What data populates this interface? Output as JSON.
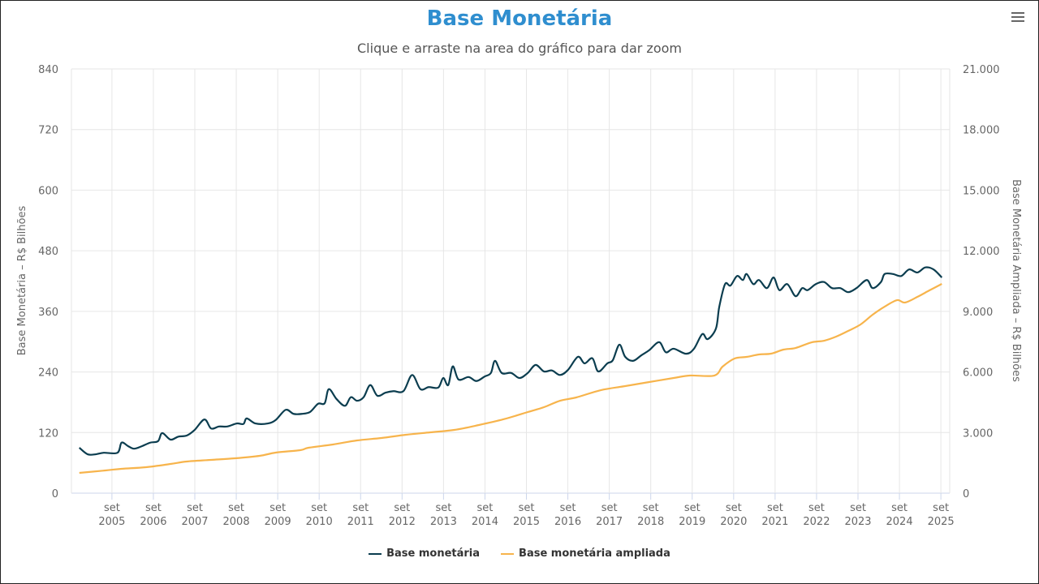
{
  "chart_data": {
    "type": "line",
    "title": "Base Monetária",
    "subtitle": "Clique e arraste na area do gráfico para dar zoom",
    "ylabel_left": "Base Monetária – R$ Bilhões",
    "ylabel_right": "Base Monetária Ampliada – R$ Bilhões",
    "ylim_left": [
      0,
      840
    ],
    "ylim_right": [
      0,
      21000
    ],
    "xlim": [
      2004.69,
      2025.88
    ],
    "yticks_left": [
      "0",
      "120",
      "240",
      "360",
      "480",
      "600",
      "720",
      "840"
    ],
    "yticks_right": [
      "0",
      "3.000",
      "6.000",
      "9.000",
      "12.000",
      "15.000",
      "18.000",
      "21.000"
    ],
    "xtick_month": "set",
    "xtick_years": [
      "2005",
      "2006",
      "2007",
      "2008",
      "2009",
      "2010",
      "2011",
      "2012",
      "2013",
      "2014",
      "2015",
      "2016",
      "2017",
      "2018",
      "2019",
      "2020",
      "2021",
      "2022",
      "2023",
      "2024",
      "2025"
    ],
    "grid": true,
    "legend_position": "bottom-center",
    "series": [
      {
        "name": "Base monetária",
        "axis": "left",
        "color": "#0b3d4f",
        "x": [
          2004.88,
          2005.08,
          2005.28,
          2005.47,
          2005.8,
          2005.9,
          2006.06,
          2006.2,
          2006.39,
          2006.59,
          2006.78,
          2006.88,
          2007.08,
          2007.27,
          2007.47,
          2007.66,
          2007.9,
          2008.06,
          2008.25,
          2008.45,
          2008.68,
          2008.84,
          2008.92,
          2009.13,
          2009.43,
          2009.62,
          2009.86,
          2010.05,
          2010.25,
          2010.45,
          2010.64,
          2010.8,
          2010.9,
          2011.09,
          2011.29,
          2011.43,
          2011.58,
          2011.74,
          2011.9,
          2012.07,
          2012.27,
          2012.46,
          2012.7,
          2012.91,
          2013.11,
          2013.31,
          2013.54,
          2013.66,
          2013.78,
          2013.89,
          2014.03,
          2014.27,
          2014.46,
          2014.66,
          2014.81,
          2014.91,
          2015.07,
          2015.3,
          2015.5,
          2015.7,
          2015.89,
          2016.09,
          2016.28,
          2016.48,
          2016.67,
          2016.91,
          2017.07,
          2017.26,
          2017.4,
          2017.62,
          2017.75,
          2017.91,
          2018.05,
          2018.24,
          2018.44,
          2018.63,
          2018.87,
          2019.03,
          2019.22,
          2019.52,
          2019.71,
          2019.91,
          2020.04,
          2020.24,
          2020.32,
          2020.46,
          2020.59,
          2020.75,
          2020.89,
          2020.98,
          2021.14,
          2021.28,
          2021.47,
          2021.63,
          2021.77,
          2021.96,
          2022.16,
          2022.32,
          2022.45,
          2022.65,
          2022.85,
          2023.04,
          2023.24,
          2023.43,
          2023.63,
          2023.88,
          2024.02,
          2024.22,
          2024.31,
          2024.51,
          2024.71,
          2024.9,
          2025.1,
          2025.29,
          2025.49,
          2025.69
        ],
        "values": [
          90,
          77,
          77,
          80,
          80,
          100,
          93,
          88,
          93,
          100,
          103,
          119,
          106,
          112,
          114,
          125,
          146,
          128,
          132,
          132,
          138,
          137,
          148,
          138,
          138,
          145,
          165,
          157,
          157,
          161,
          177,
          178,
          206,
          186,
          173,
          190,
          183,
          190,
          214,
          193,
          199,
          202,
          202,
          234,
          206,
          210,
          209,
          228,
          214,
          251,
          225,
          230,
          222,
          231,
          238,
          262,
          238,
          238,
          228,
          238,
          254,
          241,
          243,
          234,
          244,
          270,
          257,
          267,
          241,
          257,
          263,
          294,
          270,
          262,
          273,
          283,
          299,
          279,
          286,
          276,
          286,
          315,
          305,
          326,
          369,
          414,
          411,
          430,
          422,
          434,
          414,
          422,
          406,
          427,
          402,
          414,
          390,
          406,
          402,
          414,
          418,
          406,
          406,
          398,
          406,
          422,
          406,
          418,
          434,
          434,
          430,
          443,
          437,
          447,
          443,
          427
        ]
      },
      {
        "name": "Base monetária ampliada",
        "axis": "right",
        "color": "#f7b44c",
        "x": [
          2004.88,
          2005.51,
          2005.9,
          2006.49,
          2007.08,
          2007.47,
          2008.06,
          2008.64,
          2009.23,
          2009.62,
          2010.21,
          2010.41,
          2011.0,
          2011.58,
          2012.17,
          2012.76,
          2013.35,
          2013.93,
          2014.52,
          2015.11,
          2015.7,
          2016.09,
          2016.48,
          2016.87,
          2017.46,
          2018.05,
          2018.63,
          2019.22,
          2019.61,
          2020.2,
          2020.4,
          2020.69,
          2020.98,
          2021.28,
          2021.57,
          2021.87,
          2022.16,
          2022.55,
          2022.85,
          2023.14,
          2023.43,
          2023.73,
          2024.02,
          2024.31,
          2024.61,
          2024.8,
          2025.1,
          2025.39,
          2025.69
        ],
        "values": [
          1004,
          1124,
          1205,
          1285,
          1445,
          1566,
          1646,
          1726,
          1847,
          2008,
          2128,
          2248,
          2409,
          2610,
          2730,
          2891,
          3011,
          3132,
          3373,
          3654,
          4015,
          4256,
          4577,
          4738,
          5099,
          5300,
          5501,
          5701,
          5822,
          5822,
          6263,
          6665,
          6745,
          6866,
          6906,
          7107,
          7187,
          7468,
          7548,
          7749,
          8030,
          8351,
          8833,
          9234,
          9555,
          9435,
          9716,
          10037,
          10358
        ]
      }
    ]
  }
}
